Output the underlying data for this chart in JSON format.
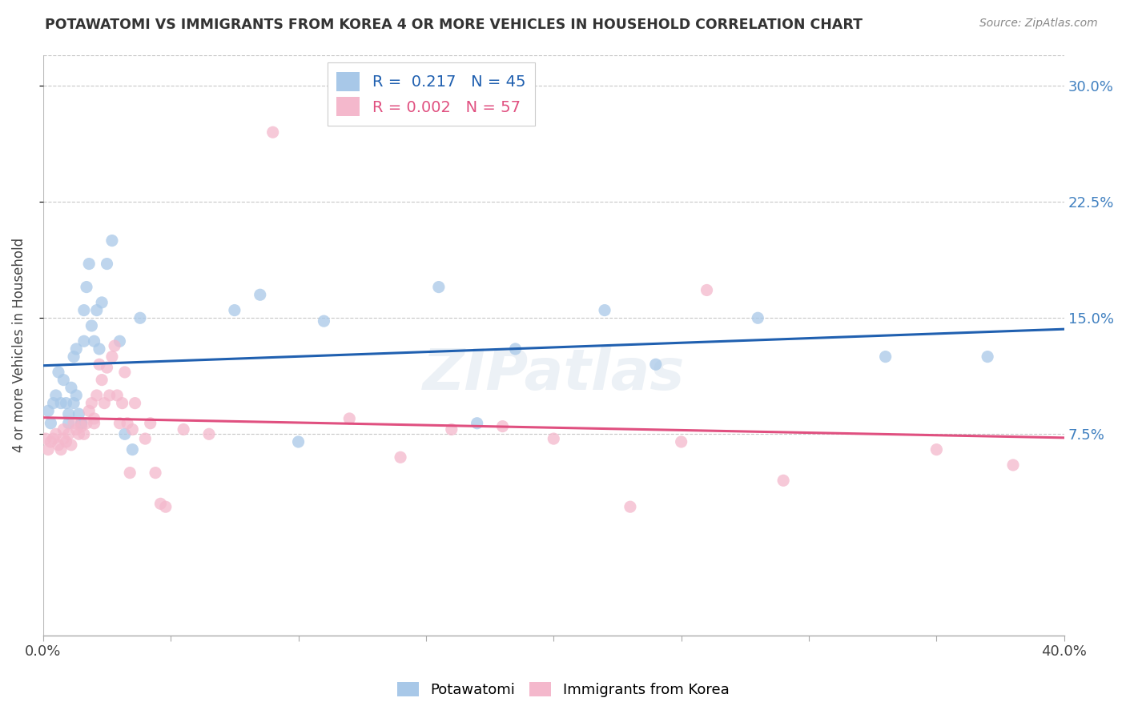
{
  "title": "POTAWATOMI VS IMMIGRANTS FROM KOREA 4 OR MORE VEHICLES IN HOUSEHOLD CORRELATION CHART",
  "source": "Source: ZipAtlas.com",
  "ylabel": "4 or more Vehicles in Household",
  "yticks_labels": [
    "7.5%",
    "15.0%",
    "22.5%",
    "30.0%"
  ],
  "ytick_vals": [
    0.075,
    0.15,
    0.225,
    0.3
  ],
  "xlim": [
    0.0,
    0.4
  ],
  "ylim": [
    -0.055,
    0.32
  ],
  "legend_label1": "Potawatomi",
  "legend_label2": "Immigrants from Korea",
  "R1": "0.217",
  "N1": "45",
  "R2": "0.002",
  "N2": "57",
  "color1": "#a8c8e8",
  "color2": "#f4b8cc",
  "line_color1": "#2060b0",
  "line_color2": "#e05080",
  "background_color": "#ffffff",
  "grid_color": "#c8c8c8",
  "potawatomi_x": [
    0.002,
    0.003,
    0.004,
    0.005,
    0.006,
    0.007,
    0.008,
    0.009,
    0.01,
    0.01,
    0.011,
    0.012,
    0.012,
    0.013,
    0.013,
    0.014,
    0.015,
    0.015,
    0.016,
    0.016,
    0.017,
    0.018,
    0.019,
    0.02,
    0.021,
    0.022,
    0.023,
    0.025,
    0.027,
    0.03,
    0.032,
    0.035,
    0.038,
    0.075,
    0.085,
    0.1,
    0.11,
    0.155,
    0.17,
    0.185,
    0.22,
    0.24,
    0.28,
    0.33,
    0.37
  ],
  "potawatomi_y": [
    0.09,
    0.082,
    0.095,
    0.1,
    0.115,
    0.095,
    0.11,
    0.095,
    0.088,
    0.082,
    0.105,
    0.125,
    0.095,
    0.1,
    0.13,
    0.088,
    0.082,
    0.082,
    0.135,
    0.155,
    0.17,
    0.185,
    0.145,
    0.135,
    0.155,
    0.13,
    0.16,
    0.185,
    0.2,
    0.135,
    0.075,
    0.065,
    0.15,
    0.155,
    0.165,
    0.07,
    0.148,
    0.17,
    0.082,
    0.13,
    0.155,
    0.12,
    0.15,
    0.125,
    0.125
  ],
  "korea_x": [
    0.001,
    0.002,
    0.003,
    0.004,
    0.005,
    0.006,
    0.007,
    0.008,
    0.008,
    0.009,
    0.01,
    0.011,
    0.012,
    0.013,
    0.014,
    0.015,
    0.016,
    0.017,
    0.018,
    0.019,
    0.02,
    0.02,
    0.021,
    0.022,
    0.023,
    0.024,
    0.025,
    0.026,
    0.027,
    0.028,
    0.029,
    0.03,
    0.031,
    0.032,
    0.033,
    0.034,
    0.035,
    0.036,
    0.04,
    0.042,
    0.044,
    0.046,
    0.048,
    0.055,
    0.065,
    0.09,
    0.12,
    0.14,
    0.16,
    0.18,
    0.2,
    0.23,
    0.25,
    0.26,
    0.29,
    0.35,
    0.38
  ],
  "korea_y": [
    0.072,
    0.065,
    0.07,
    0.072,
    0.075,
    0.068,
    0.065,
    0.072,
    0.078,
    0.07,
    0.075,
    0.068,
    0.082,
    0.078,
    0.075,
    0.08,
    0.075,
    0.082,
    0.09,
    0.095,
    0.082,
    0.085,
    0.1,
    0.12,
    0.11,
    0.095,
    0.118,
    0.1,
    0.125,
    0.132,
    0.1,
    0.082,
    0.095,
    0.115,
    0.082,
    0.05,
    0.078,
    0.095,
    0.072,
    0.082,
    0.05,
    0.03,
    0.028,
    0.078,
    0.075,
    0.27,
    0.085,
    0.06,
    0.078,
    0.08,
    0.072,
    0.028,
    0.07,
    0.168,
    0.045,
    0.065,
    0.055
  ]
}
